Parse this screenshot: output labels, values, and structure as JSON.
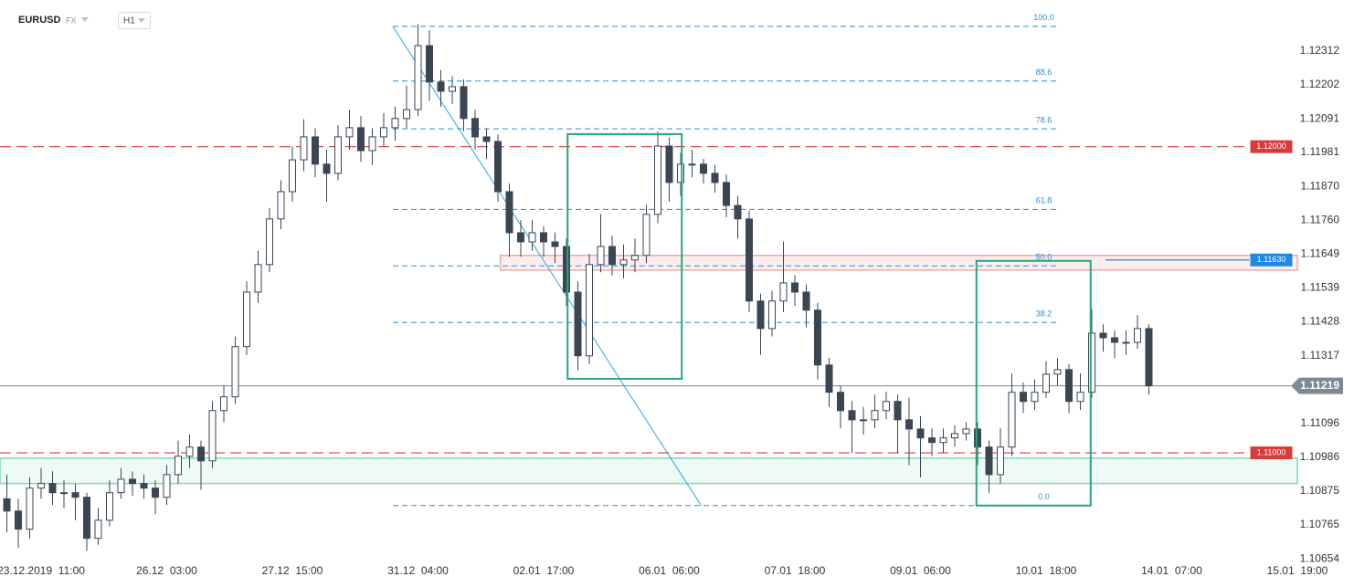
{
  "chart_data": {
    "type": "candlestick",
    "symbol": "EURUSD",
    "market": "FX",
    "interval": "H1",
    "candles": {
      "open": [
        1.1085,
        1.1081,
        1.10751,
        1.10885,
        1.109,
        1.1087,
        1.1087,
        1.10855,
        1.10721,
        1.1078,
        1.1087,
        1.10914,
        1.109,
        1.10885,
        1.10855,
        1.10929,
        1.10989,
        1.11019,
        1.10974,
        1.11138,
        1.11183,
        1.11347,
        1.11525,
        1.11615,
        1.11764,
        1.11853,
        1.11957,
        1.12032,
        1.11943,
        1.11913,
        1.12032,
        1.12062,
        1.11987,
        1.12032,
        1.12062,
        1.12092,
        1.12121,
        1.1233,
        1.12211,
        1.12181,
        1.12196,
        1.12092,
        1.12032,
        1.12017,
        1.11853,
        1.11719,
        1.11689,
        1.11719,
        1.11689,
        1.11674,
        1.11525,
        1.11317,
        1.11615,
        1.11674,
        1.11615,
        1.1163,
        1.11645,
        1.11779,
        1.12002,
        1.11883,
        1.11943,
        1.11943,
        1.11913,
        1.11883,
        1.11808,
        1.11764,
        1.11496,
        1.11406,
        1.11496,
        1.11555,
        1.11525,
        1.11466,
        1.11287,
        1.11198,
        1.11138,
        1.11108,
        1.11108,
        1.11138,
        1.11168,
        1.11108,
        1.11078,
        1.11049,
        1.11034,
        1.11049,
        1.11063,
        1.11078,
        1.11019,
        1.10929,
        1.11019,
        1.11198,
        1.11168,
        1.11198,
        1.11257,
        1.11272,
        1.11168,
        1.11198,
        1.11391,
        1.11376,
        1.11361,
        1.11361,
        1.11406
      ],
      "high": [
        1.1093,
        1.1085,
        1.1092,
        1.1095,
        1.1094,
        1.1091,
        1.109,
        1.1087,
        1.1082,
        1.1091,
        1.1095,
        1.1094,
        1.1093,
        1.1091,
        1.1096,
        1.1104,
        1.1106,
        1.1104,
        1.1117,
        1.1122,
        1.1138,
        1.1156,
        1.1166,
        1.118,
        1.1189,
        1.12,
        1.1209,
        1.1206,
        1.1199,
        1.1207,
        1.1212,
        1.121,
        1.1206,
        1.1211,
        1.1213,
        1.122,
        1.124,
        1.1238,
        1.1225,
        1.1223,
        1.1222,
        1.1212,
        1.1206,
        1.1204,
        1.1188,
        1.1176,
        1.1176,
        1.1174,
        1.1172,
        1.117,
        1.1156,
        1.1165,
        1.1178,
        1.1171,
        1.1168,
        1.117,
        1.1181,
        1.1205,
        1.1203,
        1.1198,
        1.1199,
        1.1196,
        1.1194,
        1.1191,
        1.1184,
        1.1179,
        1.1152,
        1.1153,
        1.1169,
        1.1158,
        1.1155,
        1.1149,
        1.1131,
        1.1122,
        1.1117,
        1.1115,
        1.1119,
        1.112,
        1.1119,
        1.1118,
        1.1112,
        1.1108,
        1.1108,
        1.1109,
        1.111,
        1.111,
        1.1104,
        1.1108,
        1.1126,
        1.1123,
        1.1124,
        1.113,
        1.1131,
        1.1129,
        1.1126,
        1.1147,
        1.1142,
        1.114,
        1.114,
        1.1145,
        1.1142
      ],
      "low": [
        1.1074,
        1.1069,
        1.1072,
        1.1085,
        1.1083,
        1.1082,
        1.1078,
        1.1068,
        1.107,
        1.1076,
        1.1085,
        1.1086,
        1.1085,
        1.108,
        1.1083,
        1.109,
        1.1095,
        1.1088,
        1.1095,
        1.111,
        1.1116,
        1.1132,
        1.1149,
        1.1159,
        1.1173,
        1.1182,
        1.1192,
        1.119,
        1.1182,
        1.1189,
        1.1199,
        1.1195,
        1.1194,
        1.12,
        1.1202,
        1.1206,
        1.121,
        1.1215,
        1.1213,
        1.1214,
        1.1205,
        1.1199,
        1.1196,
        1.1182,
        1.1164,
        1.1164,
        1.1166,
        1.1164,
        1.1162,
        1.1148,
        1.1127,
        1.1129,
        1.1159,
        1.1158,
        1.1157,
        1.1159,
        1.1162,
        1.1175,
        1.1182,
        1.1184,
        1.119,
        1.1188,
        1.1185,
        1.1177,
        1.117,
        1.1146,
        1.1132,
        1.1138,
        1.1146,
        1.1148,
        1.1141,
        1.1124,
        1.1115,
        1.1108,
        1.11,
        1.1106,
        1.1108,
        1.1111,
        1.11,
        1.1096,
        1.1092,
        1.1099,
        1.11,
        1.1102,
        1.1104,
        1.1096,
        1.1087,
        1.109,
        1.1099,
        1.1113,
        1.1114,
        1.1118,
        1.1122,
        1.1113,
        1.1114,
        1.1118,
        1.1133,
        1.1131,
        1.1132,
        1.1134,
        1.1119
      ],
      "close": [
        1.1081,
        1.10751,
        1.10885,
        1.109,
        1.1087,
        1.1087,
        1.10855,
        1.10721,
        1.1078,
        1.1087,
        1.10914,
        1.109,
        1.10885,
        1.10855,
        1.10929,
        1.10989,
        1.11019,
        1.10974,
        1.11138,
        1.11183,
        1.11347,
        1.11525,
        1.11615,
        1.11764,
        1.11853,
        1.11957,
        1.12032,
        1.11943,
        1.11913,
        1.12032,
        1.12062,
        1.11987,
        1.12032,
        1.12062,
        1.12092,
        1.12121,
        1.1233,
        1.12211,
        1.12181,
        1.12196,
        1.12092,
        1.12032,
        1.12017,
        1.11853,
        1.11719,
        1.11689,
        1.11719,
        1.11689,
        1.11674,
        1.11525,
        1.11317,
        1.11615,
        1.11674,
        1.11615,
        1.1163,
        1.11645,
        1.11779,
        1.12002,
        1.11883,
        1.11943,
        1.11943,
        1.11913,
        1.11883,
        1.11808,
        1.11764,
        1.11496,
        1.11406,
        1.11496,
        1.11555,
        1.11525,
        1.11466,
        1.11287,
        1.11198,
        1.11138,
        1.11108,
        1.11108,
        1.11138,
        1.11168,
        1.11108,
        1.11078,
        1.11049,
        1.11034,
        1.11049,
        1.11063,
        1.11078,
        1.11019,
        1.10929,
        1.11019,
        1.11198,
        1.11168,
        1.11198,
        1.11257,
        1.11272,
        1.11168,
        1.11198,
        1.11391,
        1.11376,
        1.11361,
        1.11361,
        1.11406,
        1.11219
      ]
    },
    "up_color": "#ffffff",
    "down_color": "#3a4654",
    "wick_color": "#3a4654",
    "xlim": [
      0,
      113
    ],
    "xticks": [
      {
        "value": 3,
        "label": "23.12.2019  11:00"
      },
      {
        "value": 14,
        "label": "26.12  03:00"
      },
      {
        "value": 25,
        "label": "27.12  15:00"
      },
      {
        "value": 36,
        "label": "31.12  04:00"
      },
      {
        "value": 47,
        "label": "02.01  17:00"
      },
      {
        "value": 58,
        "label": "06.01  06:00"
      },
      {
        "value": 69,
        "label": "07.01  18:00"
      },
      {
        "value": 80,
        "label": "09.01  06:00"
      },
      {
        "value": 91,
        "label": "10.01  18:00"
      },
      {
        "value": 102,
        "label": "14.01  07:00"
      },
      {
        "value": 113,
        "label": "15.01  19:00"
      }
    ],
    "ylim": [
      1.10562,
      1.12479
    ],
    "yticks": [
      1.12312,
      1.12202,
      1.12091,
      1.11981,
      {
        "value": 1.1187,
        "label": "1.11870"
      },
      {
        "value": 1.1176,
        "label": "1.11760"
      },
      1.11649,
      1.11539,
      1.11428,
      1.11317,
      1.11096,
      1.10986,
      1.10875,
      1.10765,
      1.10654
    ],
    "last_price": 1.11219,
    "levels": [
      {
        "value": 1.12,
        "label": "1.12000",
        "color": "#d93b3b",
        "style": "dashed",
        "x": [
          -0.6,
          108.8
        ]
      },
      {
        "value": 1.11,
        "label": "1.11000",
        "color": "#d93b3b",
        "style": "dashed",
        "x": [
          -0.6,
          108.8
        ]
      },
      {
        "value": 1.1163,
        "label": "1.11630",
        "color": "#1e88e5",
        "style": "solid",
        "x": [
          96.2,
          108.8
        ]
      }
    ],
    "fibonacci": {
      "high": 1.12393,
      "low": 1.10828,
      "x": [
        33.8,
        92
      ],
      "color": "#2a8fd6",
      "levels": [
        {
          "value": 100,
          "label": "100.0"
        },
        88.6,
        78.6,
        61.8,
        {
          "value": 50,
          "label": "50.0"
        },
        38.2,
        {
          "value": 0,
          "label": "0.0"
        }
      ]
    },
    "trend_line": {
      "x": [
        33.8,
        60.8
      ],
      "y": [
        1.12393,
        1.10828
      ],
      "color": "#2aa6e0"
    },
    "boxes": [
      {
        "x": [
          49.1,
          59.1
        ],
        "y": [
          1.11242,
          1.12041
        ],
        "color": "#26a67a"
      },
      {
        "x": [
          84.9,
          94.9
        ],
        "y": [
          1.10828,
          1.11627
        ],
        "color": "#26a67a"
      }
    ],
    "zones": [
      {
        "x": [
          43.2,
          113
        ],
        "y": [
          1.11597,
          1.11645
        ],
        "color": "#f3a6a6",
        "fill": "#fdeeee"
      },
      {
        "x": [
          -0.6,
          113
        ],
        "y": [
          1.109,
          1.10983
        ],
        "color": "#7fd9b6",
        "fill": "#eefaf5"
      }
    ]
  }
}
